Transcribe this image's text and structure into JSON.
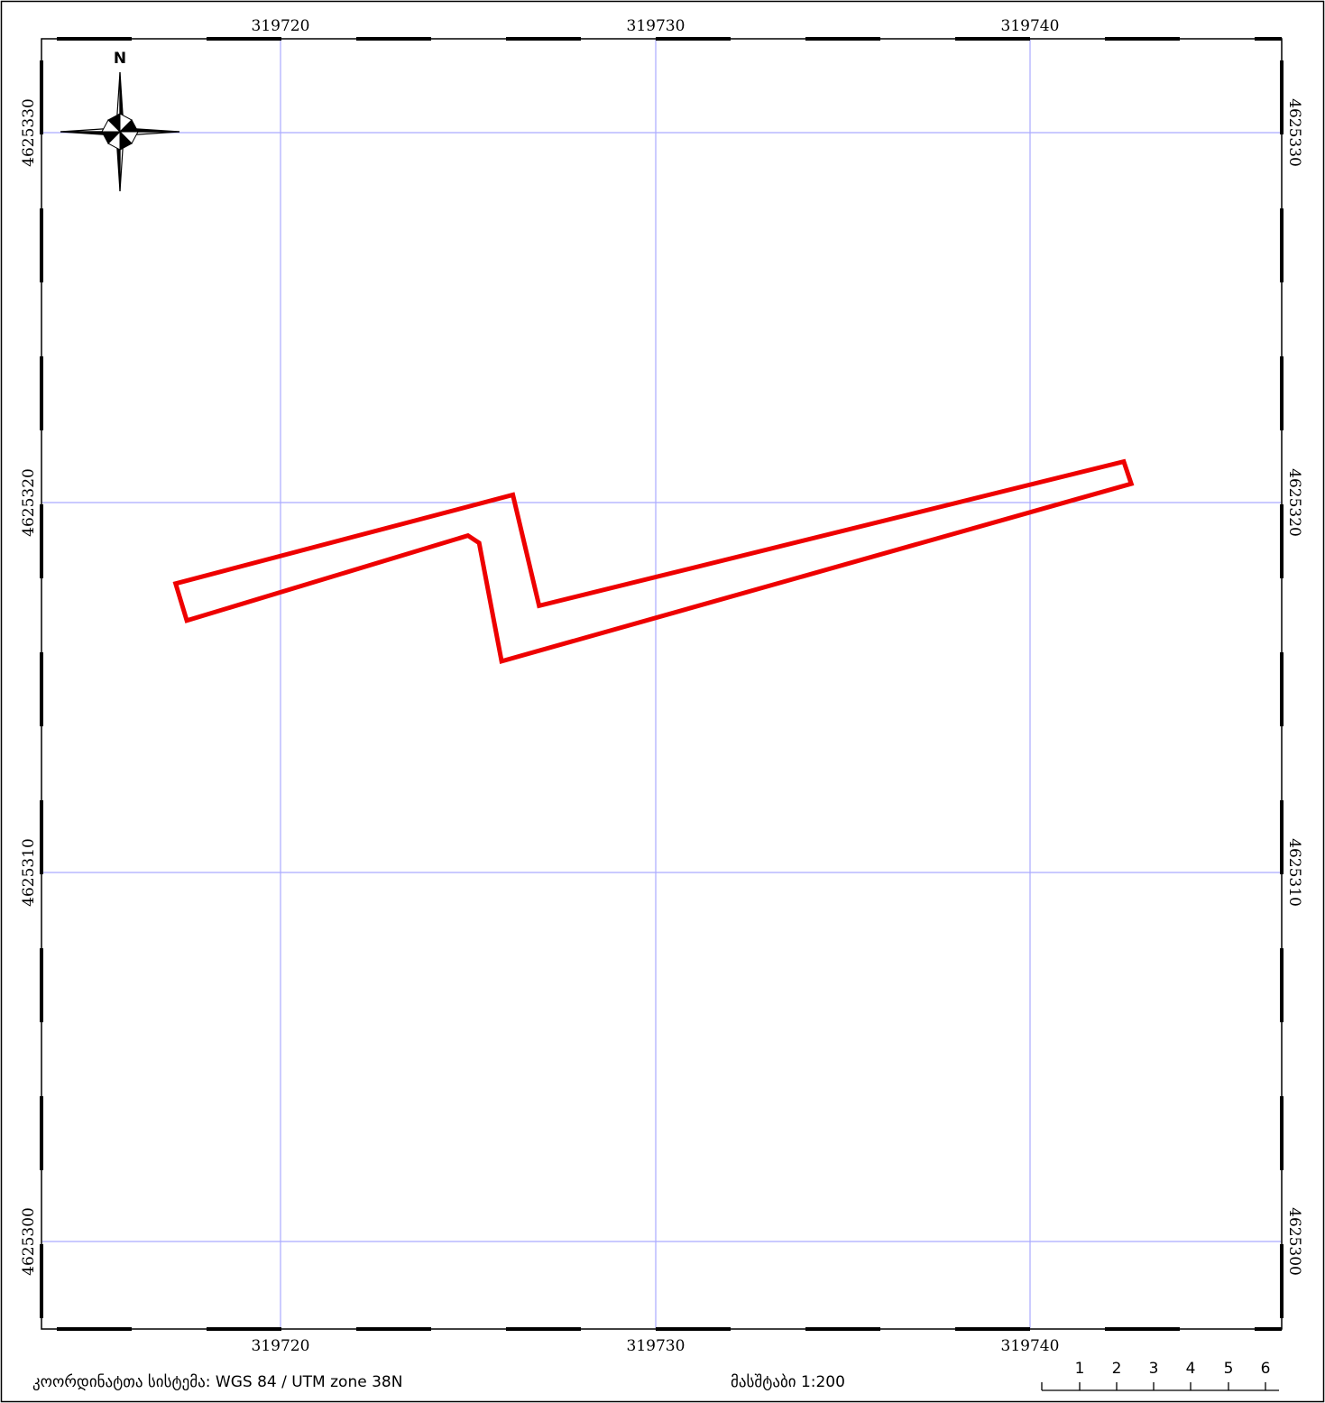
{
  "north_arrow": {
    "label": "N"
  },
  "grid": {
    "x_ticks": [
      "319720",
      "319730",
      "319740"
    ],
    "y_ticks": [
      "4625330",
      "4625320",
      "4625310",
      "4625300"
    ],
    "line_color": "#aaaaff"
  },
  "parcel": {
    "outline_color": "#ee0000",
    "coordinates": [
      [
        319717.2,
        4625317.8
      ],
      [
        319726.2,
        4625320.2
      ],
      [
        319726.9,
        4625317.2
      ],
      [
        319742.5,
        4625321.1
      ],
      [
        319742.7,
        4625320.5
      ],
      [
        319725.9,
        4625315.7
      ],
      [
        319725.3,
        4625318.9
      ],
      [
        319725.0,
        4625319.1
      ],
      [
        319717.5,
        4625316.8
      ]
    ]
  },
  "footer": {
    "crs": "კოორდინატთა სისტემა: WGS 84 / UTM zone 38N",
    "scale": "მასშტაბი 1:200"
  },
  "scale_bar": {
    "labels": [
      "1",
      "2",
      "3",
      "4",
      "5",
      "6"
    ]
  }
}
